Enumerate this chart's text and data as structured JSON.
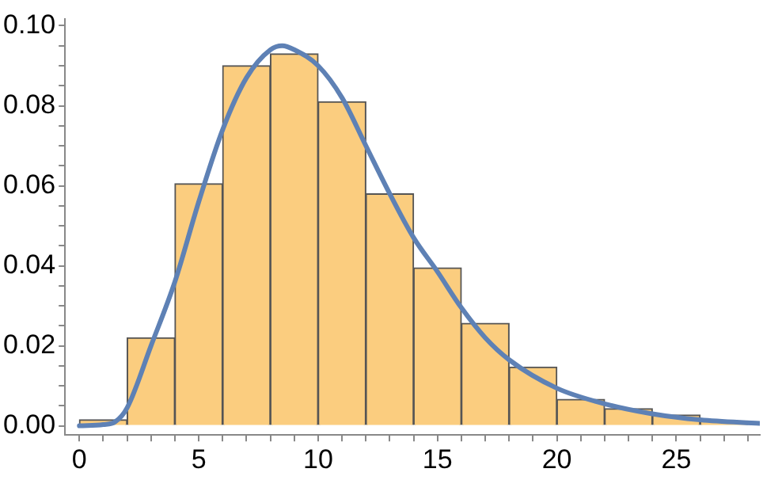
{
  "chart_data": {
    "type": "histogram",
    "bins": [
      0,
      2,
      4,
      6,
      8,
      10,
      12,
      14,
      16,
      18,
      20,
      22,
      24,
      26,
      28
    ],
    "series": [
      {
        "type": "histogram",
        "color": "#fbcd7f",
        "values": [
          0.0015,
          0.022,
          0.0605,
          0.09,
          0.093,
          0.081,
          0.058,
          0.0395,
          0.0256,
          0.0147,
          0.0066,
          0.0043,
          0.0027,
          0.0012
        ]
      },
      {
        "type": "line",
        "color": "#5e81b5",
        "x": [
          0,
          1,
          1.5,
          2,
          3,
          4,
          5,
          6,
          7,
          8,
          8.5,
          9,
          10,
          11,
          12,
          13,
          14,
          15,
          16,
          17,
          18,
          20,
          22,
          24,
          26,
          28.5
        ],
        "values": [
          0,
          0.0003,
          0.001,
          0.0045,
          0.02,
          0.036,
          0.056,
          0.074,
          0.087,
          0.094,
          0.095,
          0.094,
          0.09,
          0.082,
          0.07,
          0.058,
          0.047,
          0.0385,
          0.0295,
          0.022,
          0.0165,
          0.0094,
          0.0055,
          0.003,
          0.0015,
          0.0006
        ]
      }
    ],
    "xlim": [
      -0.6,
      28.5
    ],
    "ylim": [
      -0.0023,
      0.1016
    ],
    "xticks": [
      0,
      {
        "value": 1,
        "label": null
      },
      {
        "value": 2,
        "label": null
      },
      {
        "value": 3,
        "label": null
      },
      {
        "value": 4,
        "label": null
      },
      5,
      {
        "value": 6,
        "label": null
      },
      {
        "value": 7,
        "label": null
      },
      {
        "value": 8,
        "label": null
      },
      {
        "value": 9,
        "label": null
      },
      10,
      {
        "value": 11,
        "label": null
      },
      {
        "value": 12,
        "label": null
      },
      {
        "value": 13,
        "label": null
      },
      {
        "value": 14,
        "label": null
      },
      15,
      {
        "value": 16,
        "label": null
      },
      {
        "value": 17,
        "label": null
      },
      {
        "value": 18,
        "label": null
      },
      {
        "value": 19,
        "label": null
      },
      20,
      {
        "value": 21,
        "label": null
      },
      {
        "value": 22,
        "label": null
      },
      {
        "value": 23,
        "label": null
      },
      {
        "value": 24,
        "label": null
      },
      25,
      {
        "value": 26,
        "label": null
      },
      {
        "value": 27,
        "label": null
      },
      {
        "value": 28,
        "label": null
      }
    ],
    "yticks": [
      {
        "value": 0,
        "label": "0.00"
      },
      {
        "value": 0.005,
        "label": null
      },
      {
        "value": 0.01,
        "label": null
      },
      {
        "value": 0.015,
        "label": null
      },
      {
        "value": 0.02,
        "label": "0.02"
      },
      {
        "value": 0.025,
        "label": null
      },
      {
        "value": 0.03,
        "label": null
      },
      {
        "value": 0.035,
        "label": null
      },
      {
        "value": 0.04,
        "label": "0.04"
      },
      {
        "value": 0.045,
        "label": null
      },
      {
        "value": 0.05,
        "label": null
      },
      {
        "value": 0.055,
        "label": null
      },
      {
        "value": 0.06,
        "label": "0.06"
      },
      {
        "value": 0.065,
        "label": null
      },
      {
        "value": 0.07,
        "label": null
      },
      {
        "value": 0.075,
        "label": null
      },
      {
        "value": 0.08,
        "label": "0.08"
      },
      {
        "value": 0.085,
        "label": null
      },
      {
        "value": 0.09,
        "label": null
      },
      {
        "value": 0.095,
        "label": null
      },
      {
        "value": 0.1,
        "label": "0.10"
      }
    ],
    "grid": false,
    "legend": false
  }
}
